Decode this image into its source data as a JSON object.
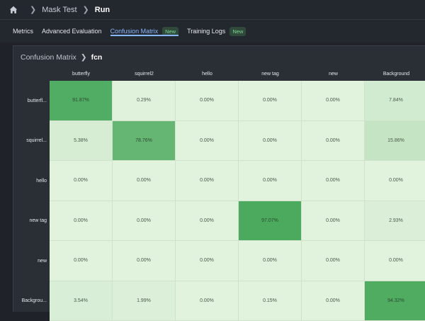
{
  "breadcrumb": {
    "items": [
      "Mask Test"
    ],
    "current": "Run"
  },
  "tabs": [
    {
      "label": "Metrics",
      "badge": null,
      "active": false
    },
    {
      "label": "Advanced Evaluation",
      "badge": null,
      "active": false
    },
    {
      "label": "Confusion Matrix",
      "badge": "New",
      "active": true
    },
    {
      "label": "Training Logs",
      "badge": "New",
      "active": false
    }
  ],
  "panel": {
    "title": "Confusion Matrix",
    "model": "fcn"
  },
  "matrix": {
    "columns": [
      "butterfly",
      "squirrel2",
      "hello",
      "new tag",
      "new",
      "Background"
    ],
    "rows": [
      "butterfl...",
      "squirrel...",
      "hello",
      "new tag",
      "new",
      "Backgrou..."
    ],
    "values": [
      [
        "91.87%",
        "0.29%",
        "0.00%",
        "0.00%",
        "0.00%",
        "7.84%"
      ],
      [
        "5.38%",
        "78.76%",
        "0.00%",
        "0.00%",
        "0.00%",
        "15.86%"
      ],
      [
        "0.00%",
        "0.00%",
        "0.00%",
        "0.00%",
        "0.00%",
        "0.00%"
      ],
      [
        "0.00%",
        "0.00%",
        "0.00%",
        "97.07%",
        "0.00%",
        "2.93%"
      ],
      [
        "0.00%",
        "0.00%",
        "0.00%",
        "0.00%",
        "0.00%",
        "0.00%"
      ],
      [
        "3.54%",
        "1.99%",
        "0.00%",
        "0.15%",
        "0.00%",
        "94.32%"
      ]
    ],
    "numeric": [
      [
        91.87,
        0.29,
        0,
        0,
        0,
        7.84
      ],
      [
        5.38,
        78.76,
        0,
        0,
        0,
        15.86
      ],
      [
        0,
        0,
        0,
        0,
        0,
        0
      ],
      [
        0,
        0,
        0,
        97.07,
        0,
        2.93
      ],
      [
        0,
        0,
        0,
        0,
        0,
        0
      ],
      [
        3.54,
        1.99,
        0,
        0.15,
        0,
        94.32
      ]
    ]
  },
  "colors": {
    "accent": "#8ab8ff",
    "cell_low": "#e1f2dd",
    "cell_high": "#47a85a"
  }
}
